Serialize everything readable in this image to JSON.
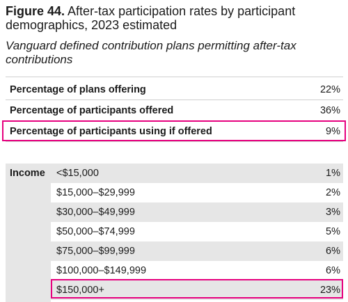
{
  "header": {
    "figure_label": "Figure 44.",
    "title": "After-tax participation rates by participant demographics, 2023 estimated",
    "subtitle": "Vanguard defined contribution plans permitting after-tax contributions"
  },
  "summary_table": {
    "rows": [
      [
        "Percentage of plans offering",
        "22%"
      ],
      [
        "Percentage of participants offered",
        "36%"
      ],
      [
        "Percentage of participants using if offered",
        "9%"
      ]
    ]
  },
  "income_table": {
    "group_label": "Income",
    "rows": [
      [
        "<$15,000",
        "1%"
      ],
      [
        "$15,000–$29,999",
        "2%"
      ],
      [
        "$30,000–$49,999",
        "3%"
      ],
      [
        "$50,000–$74,999",
        "5%"
      ],
      [
        "$75,000–$99,999",
        "6%"
      ],
      [
        "$100,000–$149,999",
        "6%"
      ],
      [
        "$150,000+",
        "23%"
      ]
    ]
  }
}
